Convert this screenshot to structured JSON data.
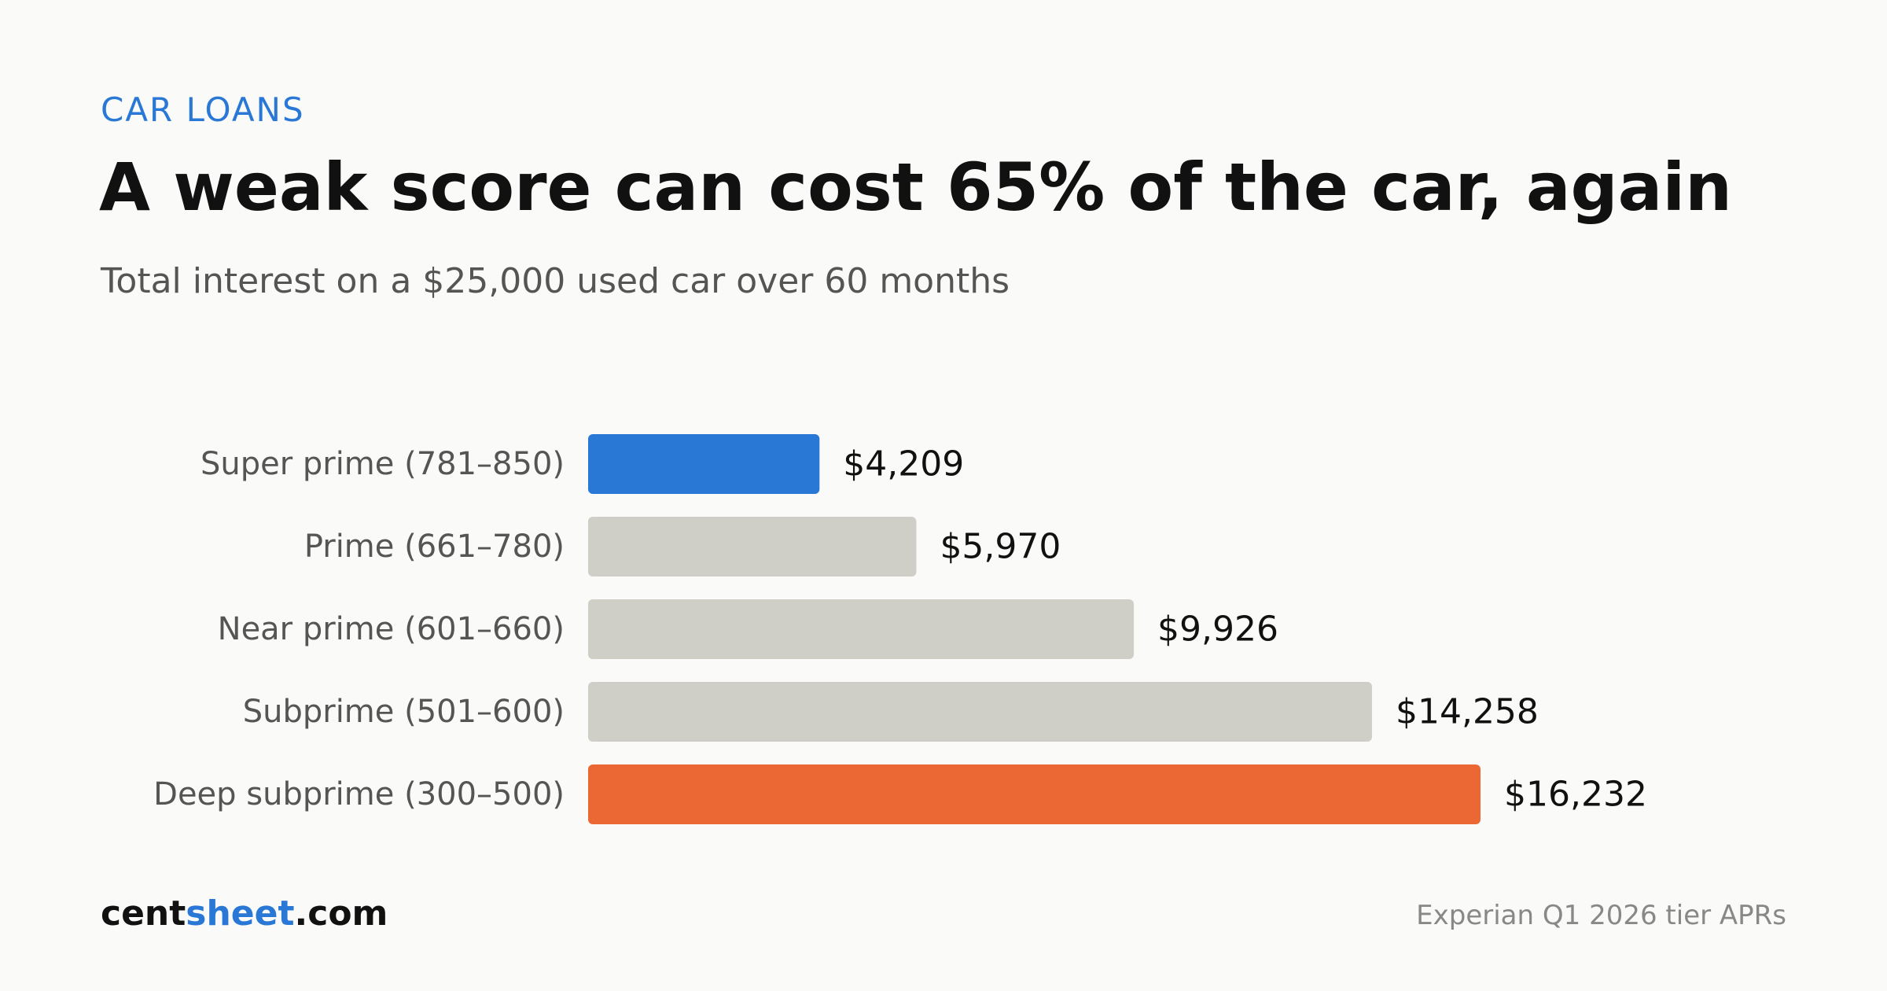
{
  "header": {
    "kicker": "CAR LOANS",
    "title": "A weak score can cost 65% of the car, again",
    "subtitle": "Total interest on a $25,000 used car over 60 months"
  },
  "chart_data": {
    "type": "bar",
    "orientation": "horizontal",
    "categories": [
      "Super prime (781–850)",
      "Prime (661–780)",
      "Near prime (601–660)",
      "Subprime (501–600)",
      "Deep subprime (300–500)"
    ],
    "values": [
      4209,
      5970,
      9926,
      14258,
      16232
    ],
    "value_labels": [
      "$4,209",
      "$5,970",
      "$9,926",
      "$14,258",
      "$16,232"
    ],
    "bar_colors": [
      "#2a78d6",
      "#cfcfc8",
      "#cfcfc8",
      "#cfcfc8",
      "#eb6834"
    ],
    "title": "A weak score can cost 65% of the car, again",
    "subtitle": "Total interest on a $25,000 used car over 60 months",
    "xlabel": "",
    "ylabel": "",
    "xlim": [
      0,
      16232
    ],
    "grid": false,
    "legend": "none"
  },
  "footer": {
    "brand_part1": "cent",
    "brand_part2": "sheet",
    "brand_part3": ".com",
    "source": "Experian Q1 2026 tier APRs"
  },
  "colors": {
    "accent_blue": "#2a78d6",
    "highlight_orange": "#eb6834",
    "neutral_bar": "#cfcfc8",
    "background": "#fafaf8"
  }
}
